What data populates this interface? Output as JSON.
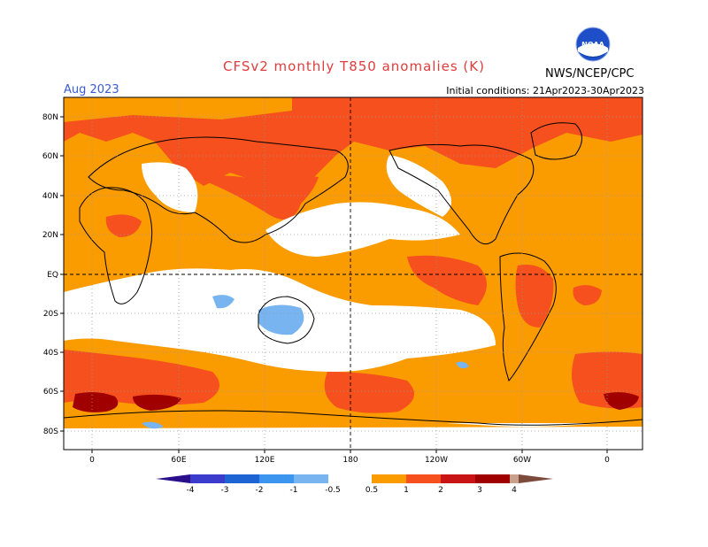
{
  "header": {
    "title": "CFSv2 monthly T850 anomalies (K)",
    "valid_month": "Aug 2023",
    "initial_conditions": "Initial conditions: 21Apr2023-30Apr2023",
    "agency": "NWS/NCEP/CPC",
    "logo_text": "NOAA"
  },
  "map": {
    "lat_labels": [
      "80N",
      "60N",
      "40N",
      "20N",
      "EQ",
      "20S",
      "40S",
      "60S",
      "80S"
    ],
    "lon_labels": [
      "0",
      "60E",
      "120E",
      "180",
      "120W",
      "60W",
      "0"
    ]
  },
  "colorbar": {
    "labels": [
      "-4",
      "-3",
      "-2",
      "-1",
      "-0.5",
      "0.5",
      "1",
      "2",
      "3",
      "4"
    ],
    "colors": {
      "lt_neg4": "#2a0e8c",
      "neg4_neg3": "#3b3bcc",
      "neg3_neg2": "#1e64d2",
      "neg2_neg1": "#3c96f0",
      "neg1_neg05": "#78b4f0",
      "neutral": "#ffffff",
      "p05_p1": "#fa9b00",
      "p1_p2": "#f5501e",
      "p2_p3": "#c81414",
      "p3_p4": "#a00000",
      "p4_p5": "#c8a08c",
      "gt_p5": "#7d4b3c"
    }
  }
}
